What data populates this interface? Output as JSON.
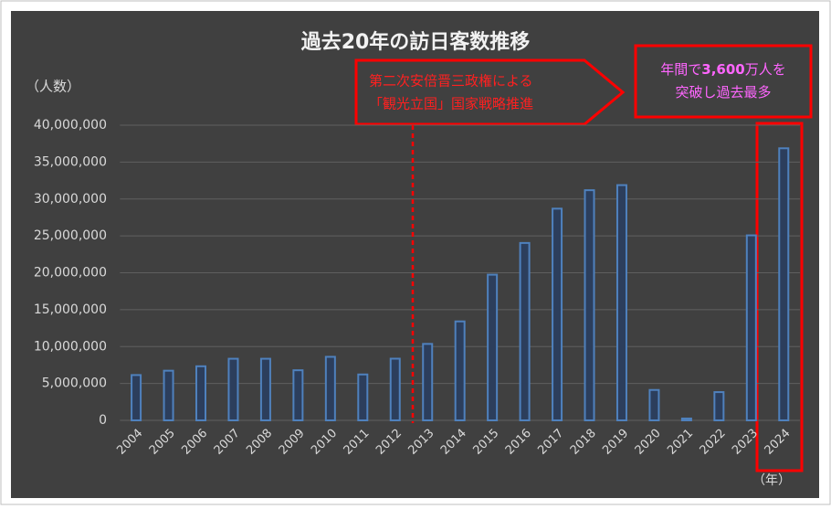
{
  "chart_data": {
    "type": "bar",
    "title": "過去20年の訪日客数推移",
    "y_label": "（人数）",
    "x_label": "（年）",
    "categories": [
      "2004",
      "2005",
      "2006",
      "2007",
      "2008",
      "2009",
      "2010",
      "2011",
      "2012",
      "2013",
      "2014",
      "2015",
      "2016",
      "2017",
      "2018",
      "2019",
      "2020",
      "2021",
      "2022",
      "2023",
      "2024"
    ],
    "values": [
      6140000,
      6730000,
      7330000,
      8350000,
      8350000,
      6790000,
      8610000,
      6220000,
      8360000,
      10360000,
      13410000,
      19740000,
      24040000,
      28690000,
      31190000,
      31880000,
      4120000,
      250000,
      3830000,
      25070000,
      36870000
    ],
    "color": "#4f81bd",
    "ylim": [
      0,
      40000000
    ],
    "yticks": [
      0,
      {
        "value": 5000000,
        "label": "5,000,000"
      },
      {
        "value": 10000000,
        "label": "10,000,000"
      },
      {
        "value": 15000000,
        "label": "15,000,000"
      },
      {
        "value": 20000000,
        "label": "20,000,000"
      },
      {
        "value": 25000000,
        "label": "25,000,000"
      },
      {
        "value": 30000000,
        "label": "30,000,000"
      },
      {
        "value": 35000000,
        "label": "35,000,000"
      },
      {
        "value": 40000000,
        "label": "40,000,000"
      }
    ],
    "grid": true,
    "annotations": [
      {
        "lines": [
          "第二次安倍晋三政権による",
          "「観光立国」国家戦略推進"
        ]
      },
      {
        "lines": [
          [
            "年間で",
            "3,600",
            "万人を"
          ],
          [
            "突破し過去最多"
          ]
        ]
      }
    ]
  }
}
